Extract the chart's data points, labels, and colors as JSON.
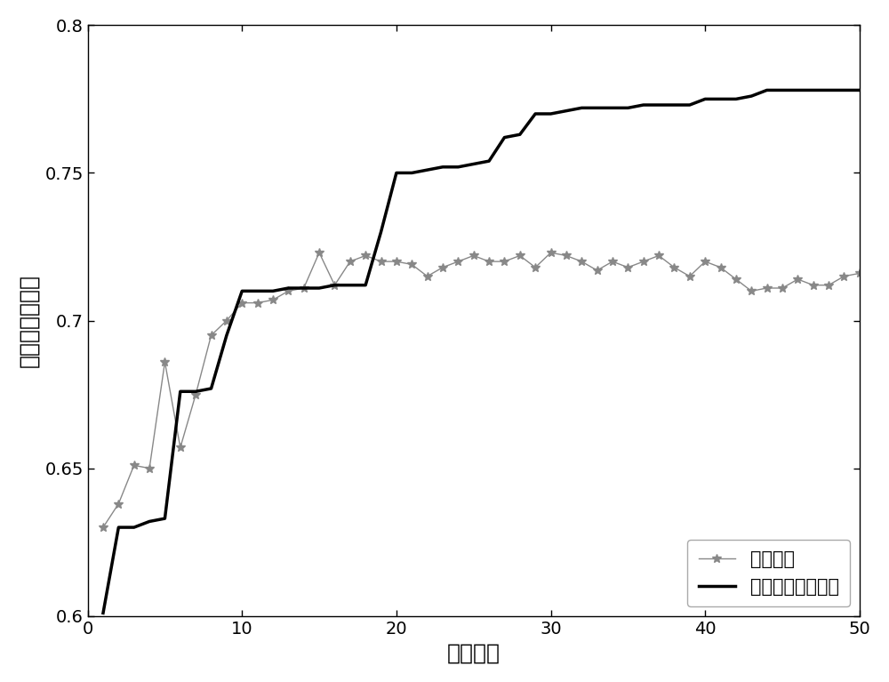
{
  "ga_x": [
    1,
    2,
    3,
    4,
    5,
    6,
    7,
    8,
    9,
    10,
    11,
    12,
    13,
    14,
    15,
    16,
    17,
    18,
    19,
    20,
    21,
    22,
    23,
    24,
    25,
    26,
    27,
    28,
    29,
    30,
    31,
    32,
    33,
    34,
    35,
    36,
    37,
    38,
    39,
    40,
    41,
    42,
    43,
    44,
    45,
    46,
    47,
    48,
    49,
    50
  ],
  "ga_y": [
    0.63,
    0.638,
    0.651,
    0.65,
    0.686,
    0.657,
    0.675,
    0.695,
    0.7,
    0.706,
    0.706,
    0.707,
    0.71,
    0.711,
    0.723,
    0.712,
    0.72,
    0.722,
    0.72,
    0.72,
    0.719,
    0.715,
    0.718,
    0.72,
    0.722,
    0.72,
    0.72,
    0.722,
    0.718,
    0.723,
    0.722,
    0.72,
    0.717,
    0.72,
    0.718,
    0.72,
    0.722,
    0.718,
    0.715,
    0.72,
    0.718,
    0.714,
    0.71,
    0.711,
    0.711,
    0.714,
    0.712,
    0.712,
    0.715,
    0.716
  ],
  "piga_x": [
    1,
    2,
    3,
    4,
    5,
    6,
    7,
    8,
    9,
    10,
    11,
    12,
    13,
    14,
    15,
    16,
    17,
    18,
    19,
    20,
    21,
    22,
    23,
    24,
    25,
    26,
    27,
    28,
    29,
    30,
    31,
    32,
    33,
    34,
    35,
    36,
    37,
    38,
    39,
    40,
    41,
    42,
    43,
    44,
    45,
    46,
    47,
    48,
    49,
    50
  ],
  "piga_y": [
    0.601,
    0.63,
    0.63,
    0.632,
    0.633,
    0.676,
    0.676,
    0.677,
    0.695,
    0.71,
    0.71,
    0.71,
    0.711,
    0.711,
    0.711,
    0.712,
    0.712,
    0.712,
    0.73,
    0.75,
    0.75,
    0.751,
    0.752,
    0.752,
    0.753,
    0.754,
    0.762,
    0.763,
    0.77,
    0.77,
    0.771,
    0.772,
    0.772,
    0.772,
    0.772,
    0.773,
    0.773,
    0.773,
    0.773,
    0.775,
    0.775,
    0.775,
    0.776,
    0.778,
    0.778,
    0.778,
    0.778,
    0.778,
    0.778,
    0.778
  ],
  "xlabel": "迭代次数",
  "ylabel": "平均服务质量值",
  "xlim": [
    0,
    50
  ],
  "ylim": [
    0.6,
    0.8
  ],
  "xticks": [
    0,
    10,
    20,
    30,
    40,
    50
  ],
  "yticks": [
    0.6,
    0.65,
    0.7,
    0.75,
    0.8
  ],
  "legend_ga": "遗传算法",
  "legend_piga": "并行免疫遗传算法",
  "ga_color": "#888888",
  "piga_color": "#000000",
  "ga_linewidth": 1.0,
  "piga_linewidth": 2.5,
  "marker": "*",
  "markersize": 7,
  "font_size_label": 18,
  "font_size_tick": 14,
  "font_size_legend": 15
}
